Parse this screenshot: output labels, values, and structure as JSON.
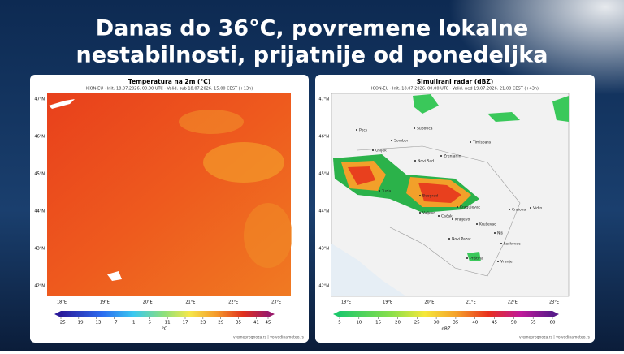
{
  "headline": {
    "lines": [
      "Danas do 36°C, povremene lokalne",
      "nestabilnosti, prijatnije od ponedeljka"
    ]
  },
  "panels": [
    {
      "title": "Temperatura na 2m (°C)",
      "subtitle": "ICON-EU · Init: 18.07.2026. 00:00 UTC · Valid: sub 18.07.2026. 15:00 CEST (+13h)",
      "lat_labels": [
        "47°N",
        "46°N",
        "45°N",
        "44°N",
        "43°N",
        "42°N"
      ],
      "lon_labels": [
        "18°E",
        "19°E",
        "20°E",
        "21°E",
        "22°E",
        "23°E"
      ],
      "colorbar": {
        "ticks": [
          {
            "value": -25,
            "label": "−25"
          },
          {
            "value": -19,
            "label": "−19"
          },
          {
            "value": -13,
            "label": "−13"
          },
          {
            "value": -7,
            "label": "−7"
          },
          {
            "value": -1,
            "label": "−1"
          },
          5,
          11,
          17,
          23,
          29,
          35,
          41,
          45
        ],
        "unit": "°C"
      },
      "credit": "vremeprognoza.rs | vojvodinameteo.rs"
    },
    {
      "title": "Simulirani radar (dBZ)",
      "subtitle": "ICON-EU · Init: 18.07.2026. 00:00 UTC · Valid: ned 19.07.2026. 21:00 CEST (+43h)",
      "lat_labels": [
        "47°N",
        "46°N",
        "45°N",
        "44°N",
        "43°N",
        "42°N"
      ],
      "lon_labels": [
        "18°E",
        "19°E",
        "20°E",
        "21°E",
        "22°E",
        "23°E"
      ],
      "colorbar": {
        "ticks": [
          5,
          10,
          15,
          20,
          25,
          30,
          35,
          40,
          45,
          50,
          55,
          60
        ],
        "unit": "dBZ"
      },
      "credit": "vremeprognoza.rs | vojvodinameteo.rs",
      "cities": [
        "Pecs",
        "Subotica",
        "Sombor",
        "Osijek",
        "Novi Sad",
        "Zrenjanin",
        "Timisoara",
        "Tuzla",
        "Beograd",
        "Valjevo",
        "Čačak",
        "Kragujevac",
        "Kraljevo",
        "Kruševac",
        "Niš",
        "Novi Pazar",
        "Priština",
        "Leskovac",
        "Vranje",
        "Craiova",
        "Vidin"
      ]
    }
  ]
}
